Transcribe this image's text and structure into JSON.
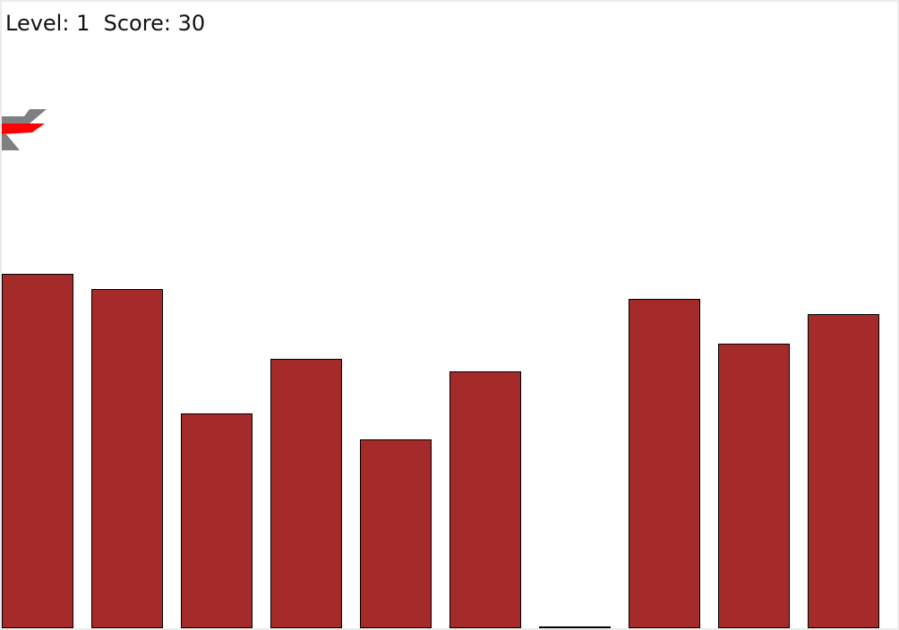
{
  "hud": {
    "level_label": "Level:",
    "level": "1",
    "score_label": "Score:",
    "score": "30"
  },
  "colors": {
    "building": "#a52a2a",
    "plane_body": "#ff0000",
    "plane_wings": "#808080"
  },
  "icons": {
    "plane": "plane-icon"
  },
  "buildings": [
    {
      "height": 396
    },
    {
      "height": 379
    },
    {
      "height": 240
    },
    {
      "height": 301
    },
    {
      "height": 211
    },
    {
      "height": 287
    },
    {
      "height": 2
    },
    {
      "height": 368
    },
    {
      "height": 318
    },
    {
      "height": 351
    }
  ]
}
